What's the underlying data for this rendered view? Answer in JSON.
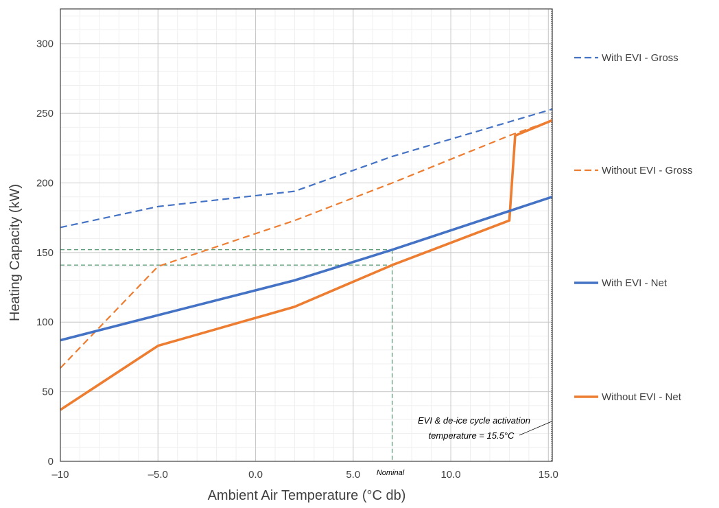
{
  "chart_data": {
    "type": "line",
    "title": "",
    "xlabel": "Ambient Air Temperature (°C db)",
    "ylabel": "Heating Capacity (kW)",
    "xlim": [
      -10,
      15.2
    ],
    "ylim": [
      0,
      325
    ],
    "x_ticks": [
      -10,
      -5,
      0,
      5,
      10,
      15
    ],
    "x_tick_labels": [
      "–10",
      "–5.0",
      "0.0",
      "5.0",
      "10.0",
      "15.0"
    ],
    "y_ticks": [
      0,
      50,
      100,
      150,
      200,
      250,
      300
    ],
    "y_tick_labels": [
      "0",
      "50",
      "100",
      "150",
      "200",
      "250",
      "300"
    ],
    "grid": true,
    "legend_position": "right",
    "series": [
      {
        "name": "With EVI - Gross",
        "style": "dashed",
        "color": "#4472c4",
        "x": [
          -10,
          -5,
          2,
          7,
          15.2
        ],
        "y": [
          168,
          183,
          194,
          219,
          253
        ]
      },
      {
        "name": "Without EVI - Gross",
        "style": "dashed",
        "color": "#ed7d31",
        "x": [
          -10,
          -5,
          2,
          7,
          13,
          15.2
        ],
        "y": [
          67,
          140,
          173,
          200,
          234,
          245
        ]
      },
      {
        "name": "With EVI - Net",
        "style": "solid",
        "color": "#4472c4",
        "x": [
          -10,
          -5,
          2,
          7,
          15.2
        ],
        "y": [
          87,
          105,
          130,
          152,
          190
        ]
      },
      {
        "name": "Without EVI - Net",
        "style": "solid",
        "color": "#ed7d31",
        "x": [
          -10,
          -5,
          2,
          7,
          13,
          13.3,
          15.2
        ],
        "y": [
          37,
          83,
          111,
          141,
          173,
          234,
          245
        ]
      }
    ],
    "reference_lines": {
      "color": "#2e7d4f",
      "nominal_x": 7,
      "levels": [
        152,
        141
      ]
    },
    "annotations": {
      "nominal_label": "Nominal",
      "evi_line1": "EVI & de-ice cycle activation",
      "evi_line2": "temperature = 15.5°C"
    }
  }
}
